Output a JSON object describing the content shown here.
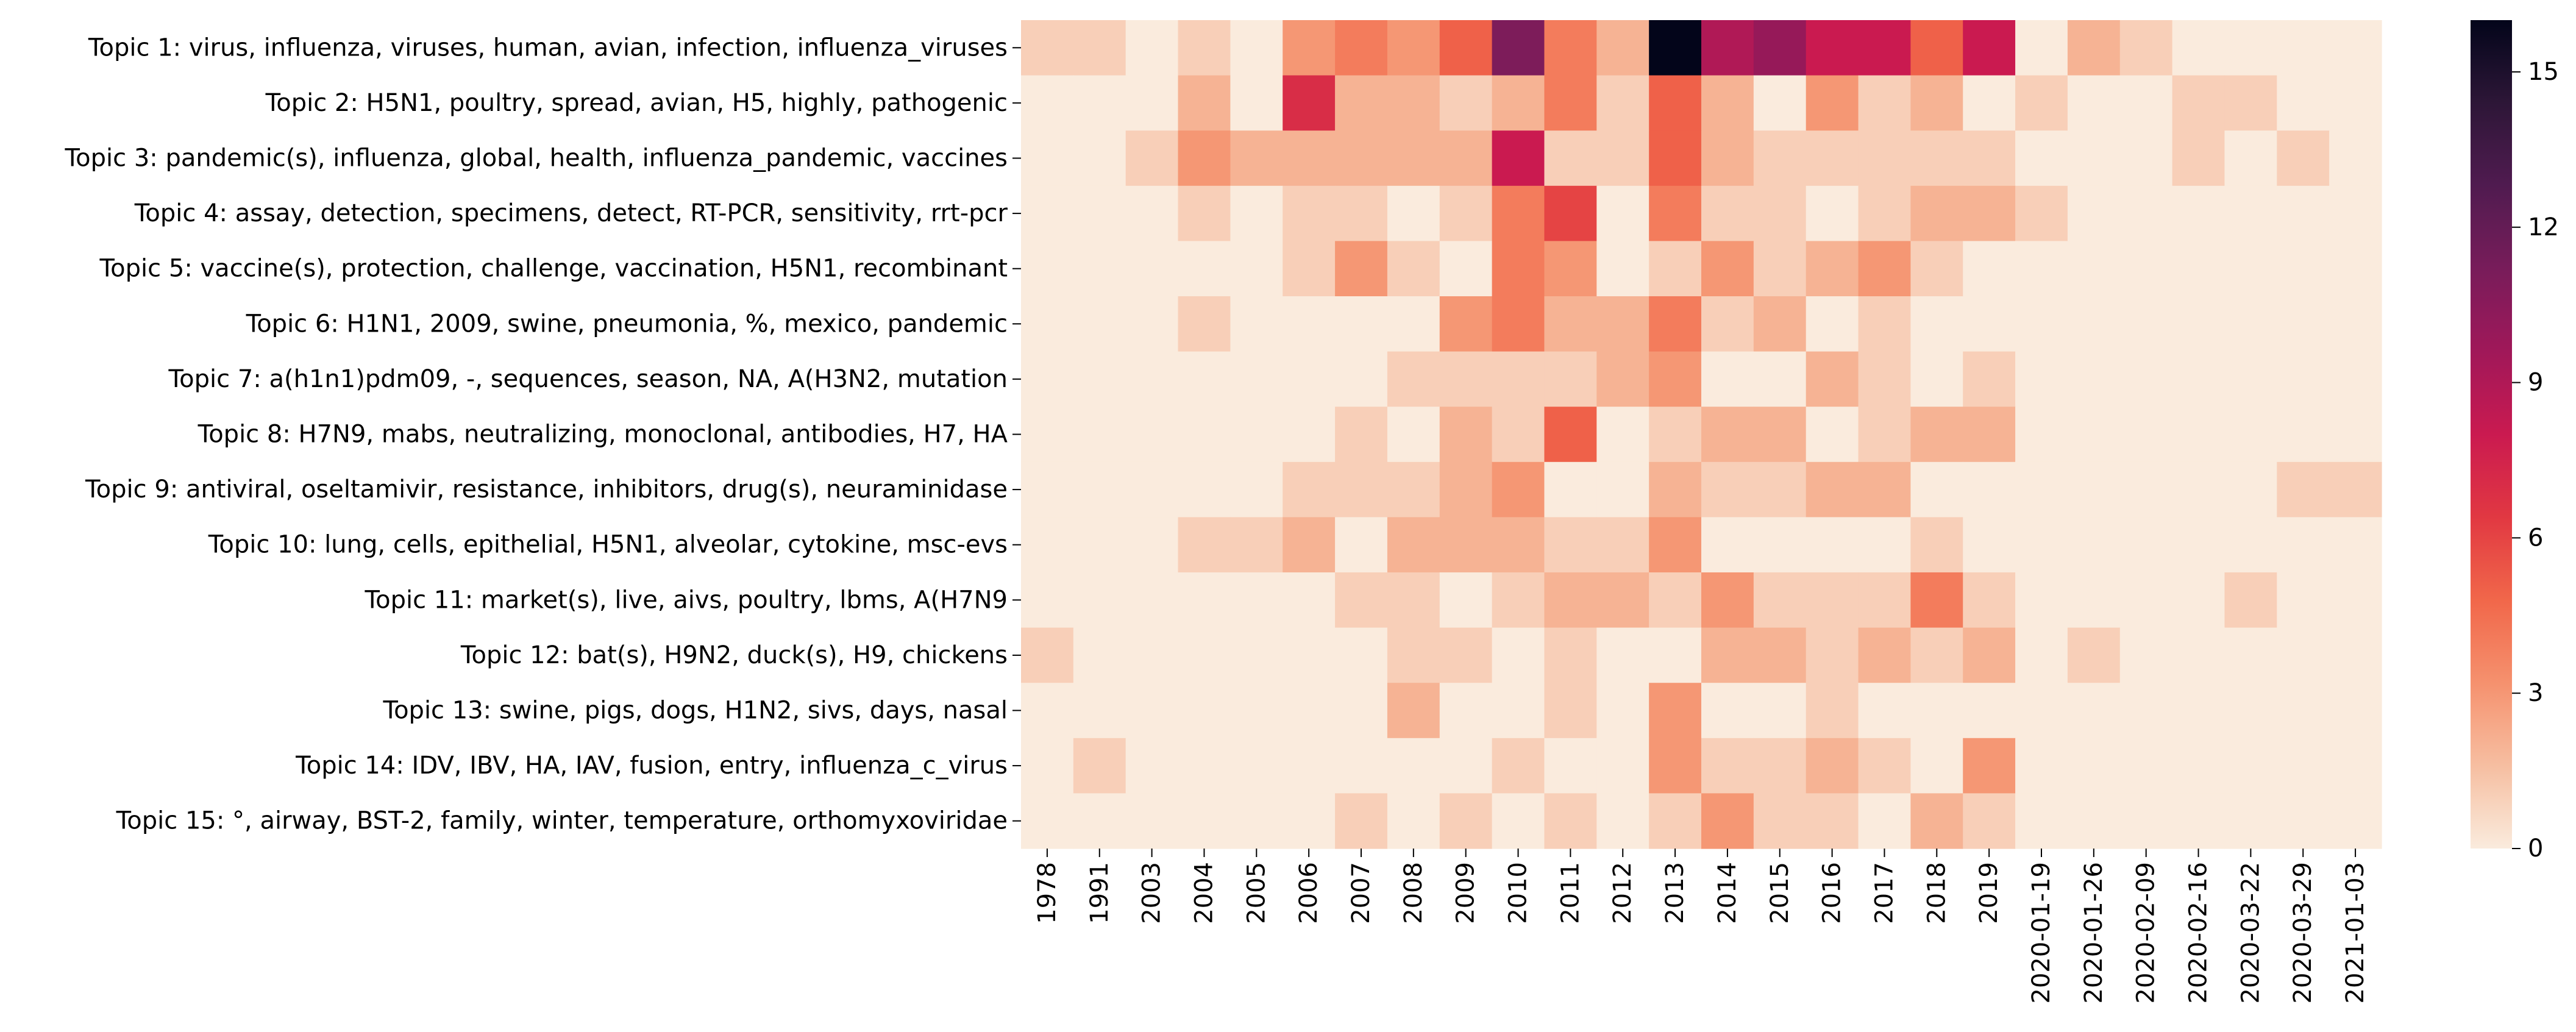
{
  "chart_data": {
    "type": "heatmap",
    "title": "",
    "xlabel": "",
    "ylabel": "",
    "x_categories": [
      "1978",
      "1991",
      "2003",
      "2004",
      "2005",
      "2006",
      "2007",
      "2008",
      "2009",
      "2010",
      "2011",
      "2012",
      "2013",
      "2014",
      "2015",
      "2016",
      "2017",
      "2018",
      "2019",
      "2020-01-19",
      "2020-01-26",
      "2020-02-09",
      "2020-02-16",
      "2020-03-22",
      "2020-03-29",
      "2021-01-03"
    ],
    "y_categories": [
      "Topic 1: virus, influenza, viruses, human, avian, infection, influenza_viruses",
      "Topic 2: H5N1, poultry, spread, avian, H5, highly, pathogenic",
      "Topic 3: pandemic(s), influenza, global, health, influenza_pandemic, vaccines",
      "Topic 4: assay, detection, specimens, detect, RT-PCR, sensitivity, rrt-pcr",
      "Topic 5: vaccine(s), protection, challenge, vaccination, H5N1, recombinant",
      "Topic 6: H1N1, 2009, swine, pneumonia, %, mexico, pandemic",
      "Topic 7: a(h1n1)pdm09, -, sequences, season, NA, A(H3N2, mutation",
      "Topic 8: H7N9, mabs, neutralizing, monoclonal, antibodies, H7, HA",
      "Topic 9: antiviral, oseltamivir, resistance, inhibitors, drug(s), neuraminidase",
      "Topic 10: lung, cells, epithelial, H5N1, alveolar, cytokine, msc-evs",
      "Topic 11: market(s), live, aivs, poultry, lbms, A(H7N9",
      "Topic 12: bat(s), H9N2, duck(s), H9, chickens",
      "Topic 13: swine, pigs, dogs, H1N2, sivs, days, nasal",
      "Topic 14: IDV, IBV, HA, IAV, fusion, entry, influenza_c_virus",
      "Topic 15: °, airway, BST-2, family, winter, temperature, orthomyxoviridae"
    ],
    "values": [
      [
        1,
        1,
        0,
        1,
        0,
        3,
        4,
        3,
        5,
        11,
        4,
        2,
        16,
        9,
        10,
        8,
        8,
        5,
        8,
        0,
        2,
        1,
        0,
        0,
        0,
        0
      ],
      [
        0,
        0,
        0,
        2,
        0,
        7,
        2,
        2,
        1,
        2,
        4,
        1,
        5,
        2,
        0,
        3,
        1,
        2,
        0,
        1,
        0,
        0,
        1,
        1,
        0,
        0
      ],
      [
        0,
        0,
        1,
        3,
        2,
        2,
        2,
        2,
        2,
        8,
        1,
        1,
        5,
        2,
        1,
        1,
        1,
        1,
        1,
        0,
        0,
        0,
        1,
        0,
        1,
        0
      ],
      [
        0,
        0,
        0,
        1,
        0,
        1,
        1,
        0,
        1,
        4,
        6,
        0,
        4,
        1,
        1,
        0,
        1,
        2,
        2,
        1,
        0,
        0,
        0,
        0,
        0,
        0
      ],
      [
        0,
        0,
        0,
        0,
        0,
        1,
        3,
        1,
        0,
        4,
        3,
        0,
        1,
        3,
        1,
        2,
        3,
        1,
        0,
        0,
        0,
        0,
        0,
        0,
        0,
        0
      ],
      [
        0,
        0,
        0,
        1,
        0,
        0,
        0,
        0,
        3,
        4,
        2,
        2,
        4,
        1,
        2,
        0,
        1,
        0,
        0,
        0,
        0,
        0,
        0,
        0,
        0,
        0
      ],
      [
        0,
        0,
        0,
        0,
        0,
        0,
        0,
        1,
        1,
        1,
        1,
        2,
        3,
        0,
        0,
        2,
        1,
        0,
        1,
        0,
        0,
        0,
        0,
        0,
        0,
        0
      ],
      [
        0,
        0,
        0,
        0,
        0,
        0,
        1,
        0,
        2,
        1,
        5,
        0,
        1,
        2,
        2,
        0,
        1,
        2,
        2,
        0,
        0,
        0,
        0,
        0,
        0,
        0
      ],
      [
        0,
        0,
        0,
        0,
        0,
        1,
        1,
        1,
        2,
        3,
        0,
        0,
        2,
        1,
        1,
        2,
        2,
        0,
        0,
        0,
        0,
        0,
        0,
        0,
        1,
        1
      ],
      [
        0,
        0,
        0,
        1,
        1,
        2,
        0,
        2,
        2,
        2,
        1,
        1,
        3,
        0,
        0,
        0,
        0,
        1,
        0,
        0,
        0,
        0,
        0,
        0,
        0,
        0
      ],
      [
        0,
        0,
        0,
        0,
        0,
        0,
        1,
        1,
        0,
        1,
        2,
        2,
        1,
        3,
        1,
        1,
        1,
        4,
        1,
        0,
        0,
        0,
        0,
        1,
        0,
        0
      ],
      [
        1,
        0,
        0,
        0,
        0,
        0,
        0,
        1,
        1,
        0,
        1,
        0,
        0,
        2,
        2,
        1,
        2,
        1,
        2,
        0,
        1,
        0,
        0,
        0,
        0,
        0
      ],
      [
        0,
        0,
        0,
        0,
        0,
        0,
        0,
        2,
        0,
        0,
        1,
        0,
        3,
        0,
        0,
        1,
        0,
        0,
        0,
        0,
        0,
        0,
        0,
        0,
        0,
        0
      ],
      [
        0,
        1,
        0,
        0,
        0,
        0,
        0,
        0,
        0,
        1,
        0,
        0,
        3,
        1,
        1,
        2,
        1,
        0,
        3,
        0,
        0,
        0,
        0,
        0,
        0,
        0
      ],
      [
        0,
        0,
        0,
        0,
        0,
        0,
        1,
        0,
        1,
        0,
        1,
        0,
        1,
        3,
        1,
        1,
        0,
        2,
        1,
        0,
        0,
        0,
        0,
        0,
        0,
        0
      ]
    ],
    "colorbar": {
      "min": 0,
      "max": 16,
      "ticks": [
        "0",
        "3",
        "6",
        "9",
        "12",
        "15"
      ],
      "colormap": "rocket_r"
    }
  }
}
